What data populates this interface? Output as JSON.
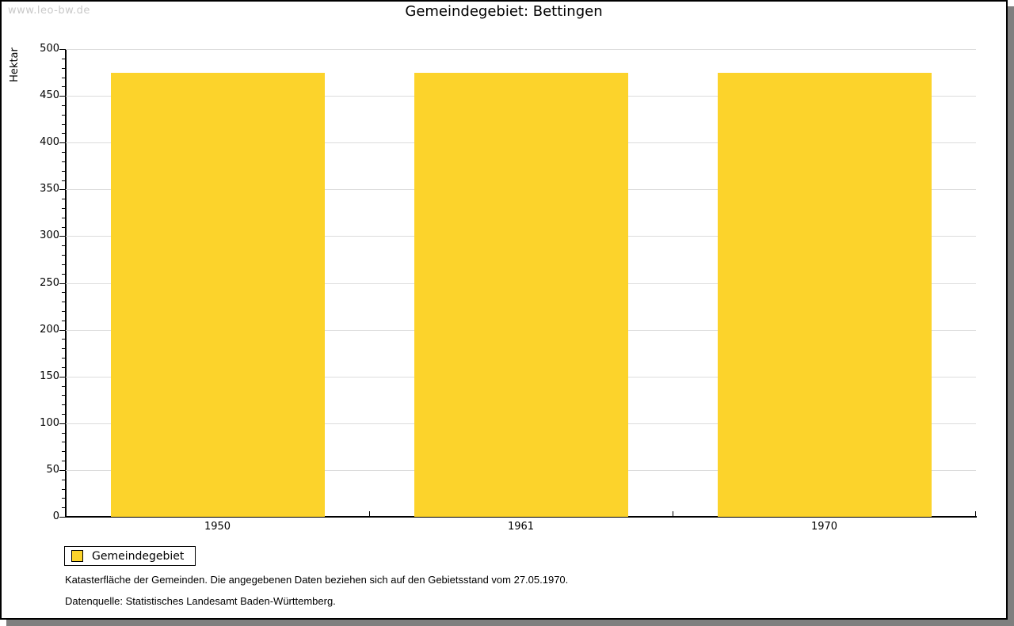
{
  "watermark": "www.leo-bw.de",
  "title": "Gemeindegebiet: Bettingen",
  "chart_data": {
    "type": "bar",
    "title": "Gemeindegebiet: Bettingen",
    "categories": [
      "1950",
      "1961",
      "1970"
    ],
    "series": [
      {
        "name": "Gemeindegebiet",
        "values": [
          475,
          475,
          475
        ],
        "color": "#FCD32B"
      }
    ],
    "xlabel": "",
    "ylabel": "Hektar",
    "ylim": [
      0,
      500
    ],
    "ytick_step": 50,
    "yminor_tick_step": 10,
    "grid": true,
    "legend_position": "bottom-left"
  },
  "legend": {
    "items": [
      {
        "label": "Gemeindegebiet",
        "color": "#FCD32B"
      }
    ]
  },
  "footnotes": [
    "Katasterfläche der Gemeinden. Die angegebenen Daten beziehen sich auf den Gebietsstand vom 27.05.1970.",
    "Datenquelle: Statistisches Landesamt Baden-Württemberg."
  ],
  "colors": {
    "bar": "#FCD32B",
    "gridline": "#dcdcdc",
    "axis": "#000000",
    "watermark": "#c9c9c9",
    "frame_shadow": "#7f7f7f"
  }
}
